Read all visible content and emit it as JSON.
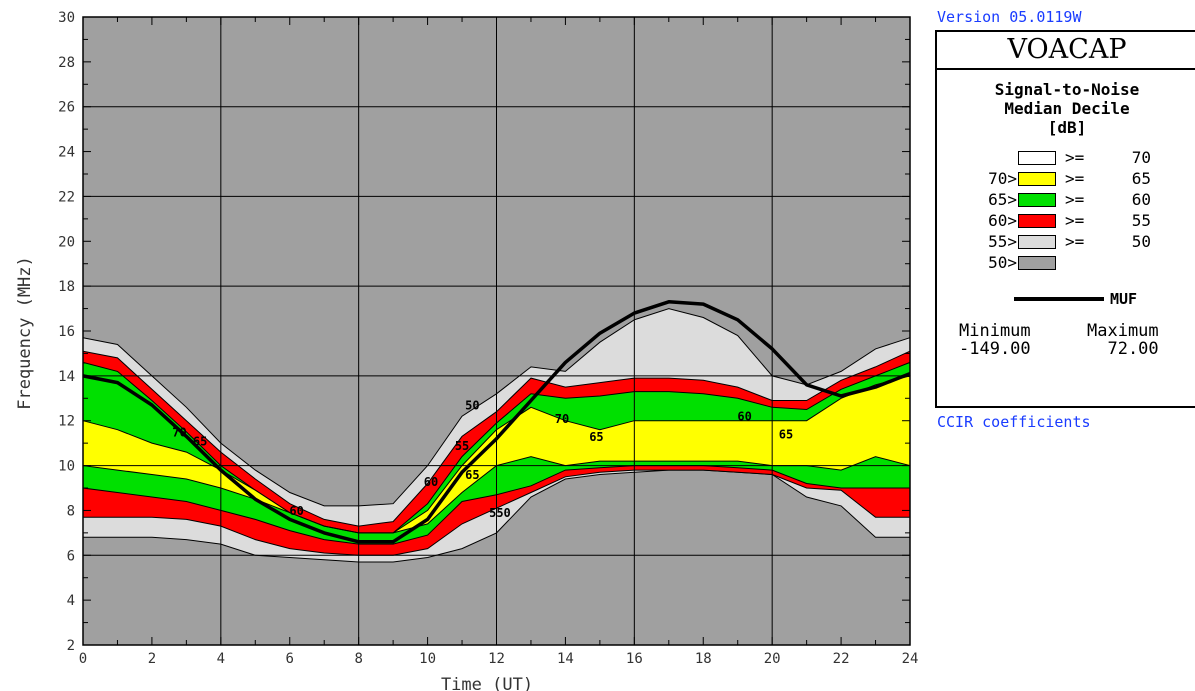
{
  "version_text": "Version 05.0119W",
  "brand": "VOACAP",
  "legend": {
    "title_lines": [
      "Signal-to-Noise",
      "Median Decile",
      "[dB]"
    ],
    "entries": [
      {
        "lower": "",
        "color": "#ffffff",
        "cmp": ">=",
        "value": "70"
      },
      {
        "lower": "70>",
        "color": "#ffff00",
        "cmp": ">=",
        "value": "65"
      },
      {
        "lower": "65>",
        "color": "#00e000",
        "cmp": ">=",
        "value": "60"
      },
      {
        "lower": "60>",
        "color": "#ff0000",
        "cmp": ">=",
        "value": "55"
      },
      {
        "lower": "55>",
        "color": "#dcdcdc",
        "cmp": ">=",
        "value": "50"
      },
      {
        "lower": "50>",
        "color": "#a0a0a0",
        "cmp": "",
        "value": ""
      }
    ],
    "muf_label": "MUF",
    "min_label": "Minimum",
    "min_value": "-149.00",
    "max_label": "Maximum",
    "max_value": "72.00"
  },
  "coefficients_text": "CCIR coefficients",
  "chart_data": {
    "type": "heatmap",
    "xlabel": "Time (UT)",
    "ylabel": "Frequency (MHz)",
    "xlim": [
      0,
      24
    ],
    "ylim": [
      2,
      30
    ],
    "xticks": [
      "0",
      "2",
      "4",
      "6",
      "8",
      "10",
      "12",
      "14",
      "16",
      "18",
      "20",
      "22",
      "24"
    ],
    "yticks": [
      "2",
      "4",
      "6",
      "8",
      "10",
      "12",
      "14",
      "16",
      "18",
      "20",
      "22",
      "24",
      "26",
      "28",
      "30"
    ],
    "grid": true,
    "colors": {
      "background": "#a0a0a0",
      "c50": "#dcdcdc",
      "c55": "#ff0000",
      "c60": "#00e000",
      "c65": "#ffff00",
      "c70": "#ffffff",
      "muf": "#000000"
    },
    "x": [
      0,
      1,
      2,
      3,
      4,
      5,
      6,
      7,
      8,
      9,
      10,
      11,
      12,
      13,
      14,
      15,
      16,
      17,
      18,
      19,
      20,
      21,
      22,
      23,
      24
    ],
    "muf": [
      14.0,
      13.7,
      12.7,
      11.3,
      9.8,
      8.5,
      7.6,
      7.0,
      6.6,
      6.6,
      7.6,
      9.7,
      11.2,
      12.9,
      14.6,
      15.9,
      16.8,
      17.3,
      17.2,
      16.5,
      15.2,
      13.6,
      13.1,
      13.5,
      14.1
    ],
    "contours": [
      {
        "level": 50,
        "top": [
          15.7,
          15.4,
          14.0,
          12.6,
          11.0,
          9.8,
          8.8,
          8.2,
          8.2,
          8.3,
          10.0,
          12.2,
          13.2,
          14.4,
          14.2,
          15.5,
          16.5,
          17.0,
          16.6,
          15.8,
          14.0,
          13.6,
          14.2,
          15.2,
          15.7
        ],
        "bottom": [
          6.8,
          6.8,
          6.8,
          6.7,
          6.5,
          6.0,
          5.9,
          5.8,
          5.7,
          5.7,
          5.9,
          6.3,
          7.0,
          8.6,
          9.4,
          9.6,
          9.7,
          9.8,
          9.8,
          9.7,
          9.6,
          8.6,
          8.2,
          6.8,
          6.8
        ]
      },
      {
        "level": 55,
        "top": [
          15.1,
          14.8,
          13.4,
          12.0,
          10.6,
          9.4,
          8.3,
          7.6,
          7.3,
          7.5,
          9.2,
          11.3,
          12.4,
          13.9,
          13.5,
          13.7,
          13.9,
          13.9,
          13.8,
          13.5,
          12.9,
          12.9,
          13.8,
          14.4,
          15.1
        ],
        "bottom": [
          7.7,
          7.7,
          7.7,
          7.6,
          7.3,
          6.7,
          6.3,
          6.1,
          6.0,
          6.0,
          6.3,
          7.4,
          8.1,
          8.8,
          9.5,
          9.7,
          9.8,
          9.8,
          9.8,
          9.7,
          9.6,
          9.0,
          8.9,
          7.7,
          7.7
        ]
      },
      {
        "level": 60,
        "top": [
          14.6,
          14.2,
          12.9,
          11.5,
          10.0,
          8.9,
          7.9,
          7.3,
          7.0,
          7.0,
          8.3,
          10.4,
          11.9,
          13.2,
          13.0,
          13.1,
          13.3,
          13.3,
          13.2,
          13.0,
          12.6,
          12.5,
          13.4,
          14.0,
          14.6
        ],
        "bottom": [
          9.0,
          8.8,
          8.6,
          8.4,
          8.0,
          7.6,
          7.1,
          6.7,
          6.5,
          6.5,
          6.9,
          8.4,
          8.7,
          9.1,
          9.8,
          9.9,
          10.0,
          10.0,
          10.0,
          9.9,
          9.8,
          9.2,
          9.0,
          9.0,
          9.0
        ]
      },
      {
        "level": 65,
        "top": [
          12.0,
          11.6,
          11.0,
          10.6,
          9.8,
          8.9,
          7.9,
          7.3,
          7.0,
          7.0,
          8.0,
          10.0,
          11.6,
          12.6,
          12.0,
          11.6,
          12.0,
          12.0,
          12.0,
          12.0,
          12.0,
          12.0,
          13.0,
          13.6,
          14.0
        ],
        "bottom": [
          10.0,
          9.8,
          9.6,
          9.4,
          9.0,
          8.5,
          7.9,
          7.3,
          7.0,
          7.0,
          7.4,
          8.8,
          10.0,
          10.4,
          10.0,
          10.2,
          10.2,
          10.2,
          10.2,
          10.2,
          10.0,
          10.0,
          9.8,
          10.4,
          10.0
        ]
      }
    ],
    "annotations": [
      "70",
      "65",
      "60",
      "50",
      "55",
      "60",
      "65",
      "70",
      "65",
      "60",
      "65",
      "550"
    ]
  }
}
